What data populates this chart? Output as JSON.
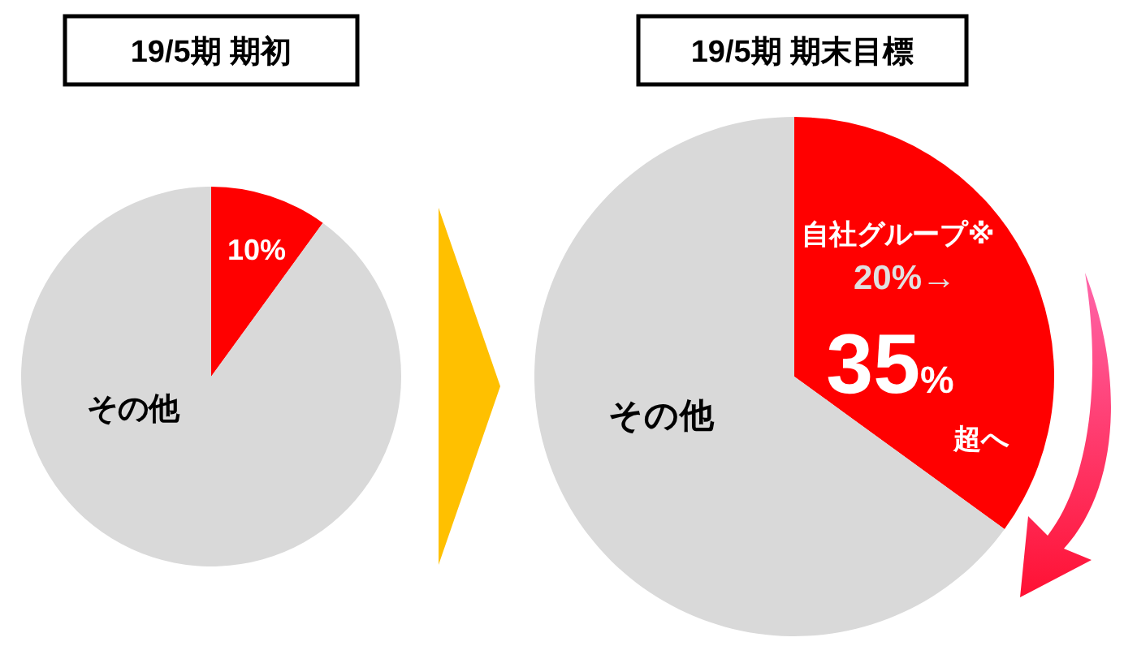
{
  "chart_data": [
    {
      "type": "pie",
      "title": "19/5期 期初",
      "categories": [
        null,
        "その他"
      ],
      "values": [
        10,
        90
      ],
      "colors": [
        "#ff0000",
        "#d9d9d9"
      ],
      "value_labels": [
        "10%",
        null
      ]
    },
    {
      "type": "pie",
      "title": "19/5期 期末目標",
      "categories": [
        "自社グループ※",
        "その他"
      ],
      "values": [
        35,
        65
      ],
      "colors": [
        "#ff0000",
        "#d9d9d9"
      ],
      "value_labels": [
        "35%",
        null
      ],
      "annotations": [
        "20%→",
        "超へ"
      ]
    }
  ]
}
